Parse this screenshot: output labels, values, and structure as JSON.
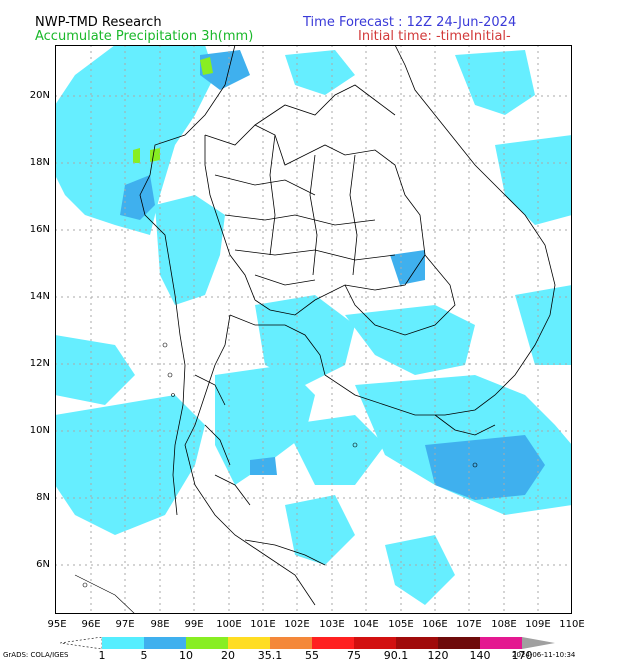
{
  "header": {
    "model": "NWP-TMD Research",
    "product": "Accumulate Precipitation 3h(mm)",
    "forecast": "Time Forecast : 12Z 24-Jun-2024",
    "initial": "Initial time: -timeInitial-"
  },
  "axes": {
    "lat_labels": [
      "20N",
      "18N",
      "16N",
      "14N",
      "12N",
      "10N",
      "8N",
      "6N"
    ],
    "lat_values": [
      20,
      18,
      16,
      14,
      12,
      10,
      8,
      6
    ],
    "lon_labels": [
      "95E",
      "96E",
      "97E",
      "98E",
      "99E",
      "100E",
      "101E",
      "102E",
      "103E",
      "104E",
      "105E",
      "106E",
      "107E",
      "108E",
      "109E",
      "110E"
    ],
    "lon_values": [
      95,
      96,
      97,
      98,
      99,
      100,
      101,
      102,
      103,
      104,
      105,
      106,
      107,
      108,
      109,
      110
    ],
    "lon_range": [
      95,
      110
    ],
    "lat_range": [
      4.6,
      21.5
    ]
  },
  "colorbar": {
    "labels": [
      "1",
      "5",
      "10",
      "20",
      "35.1",
      "55",
      "75",
      "90.1",
      "120",
      "140",
      "170"
    ],
    "colors": [
      "#ffffff",
      "#55eeff",
      "#3fb0ee",
      "#88ee22",
      "#ffdd22",
      "#f4883a",
      "#ff2020",
      "#d21010",
      "#a00a0a",
      "#6e0a0a",
      "#e41890",
      "#b010c8",
      "#a0a0a0"
    ]
  },
  "footer": {
    "left": "GrADS: COLA/IGES",
    "right": "2024-06-11-10:34"
  },
  "colors": {
    "precip_light": "#66eeff",
    "precip_mid": "#3fb0ee",
    "precip_green": "#88ee22",
    "grid": "#aaaaaa",
    "boundary": "#000000"
  }
}
